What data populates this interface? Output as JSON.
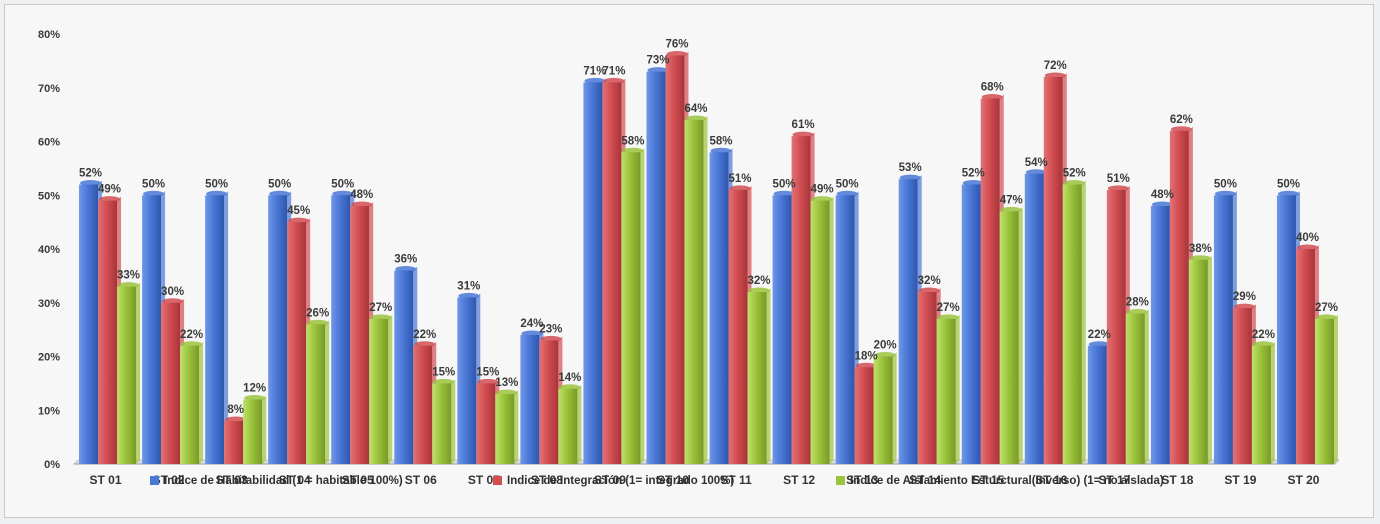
{
  "chart_data": {
    "type": "bar",
    "categories": [
      "ST 01",
      "ST 02",
      "ST 03",
      "ST 04",
      "ST 05",
      "ST 06",
      "ST 07",
      "ST 08",
      "ST 09",
      "ST 10",
      "ST 11",
      "ST 12",
      "ST 13",
      "ST 14",
      "ST 15",
      "ST 16",
      "ST 17",
      "ST 18",
      "ST 19",
      "ST 20"
    ],
    "series": [
      {
        "name": "Indice de Habitabilidad (1 = habitable 100%)",
        "color": "#4a78d6",
        "values": [
          52,
          50,
          50,
          50,
          50,
          36,
          31,
          24,
          71,
          73,
          58,
          50,
          50,
          53,
          52,
          54,
          22,
          48,
          50,
          50
        ],
        "labels": [
          "52%",
          "50%",
          "50%",
          "50%",
          "50%",
          "36%",
          "31%",
          "24%",
          "71%",
          "73%",
          "58%",
          "50%",
          "50%",
          "53%",
          "52%",
          "54%",
          "22%",
          "48%",
          "50%",
          "50%"
        ]
      },
      {
        "name": "Indice de Integración (1= integrado 100%)",
        "color": "#d24e52",
        "values": [
          49,
          30,
          8,
          45,
          48,
          22,
          15,
          23,
          71,
          76,
          51,
          61,
          18,
          32,
          68,
          72,
          51,
          62,
          29,
          40
        ],
        "labels": [
          "49%",
          "30%",
          "8%",
          "45%",
          "48%",
          "22%",
          "15%",
          "23%",
          "71%",
          "76%",
          "51%",
          "61%",
          "18%",
          "32%",
          "68%",
          "72%",
          "51%",
          "62%",
          "29%",
          "40%"
        ]
      },
      {
        "name": "Indice de Aislamiento Esturctural(Inverso) (1= no aislada)",
        "color": "#9bc33c",
        "values": [
          33,
          22,
          12,
          26,
          27,
          15,
          13,
          14,
          58,
          64,
          32,
          49,
          20,
          27,
          47,
          52,
          28,
          38,
          22,
          27
        ],
        "labels": [
          "33%",
          "22%",
          "12%",
          "26%",
          "27%",
          "15%",
          "13%",
          "14%",
          "58%",
          "64%",
          "32%",
          "49%",
          "20%",
          "27%",
          "47%",
          "52%",
          "28%",
          "38%",
          "22%",
          "27%"
        ]
      }
    ],
    "y_ticks": [
      "0%",
      "10%",
      "20%",
      "30%",
      "40%",
      "50%",
      "60%",
      "70%",
      "80%"
    ],
    "ylim": [
      0,
      80
    ],
    "legend_position": "bottom",
    "grid": false
  }
}
